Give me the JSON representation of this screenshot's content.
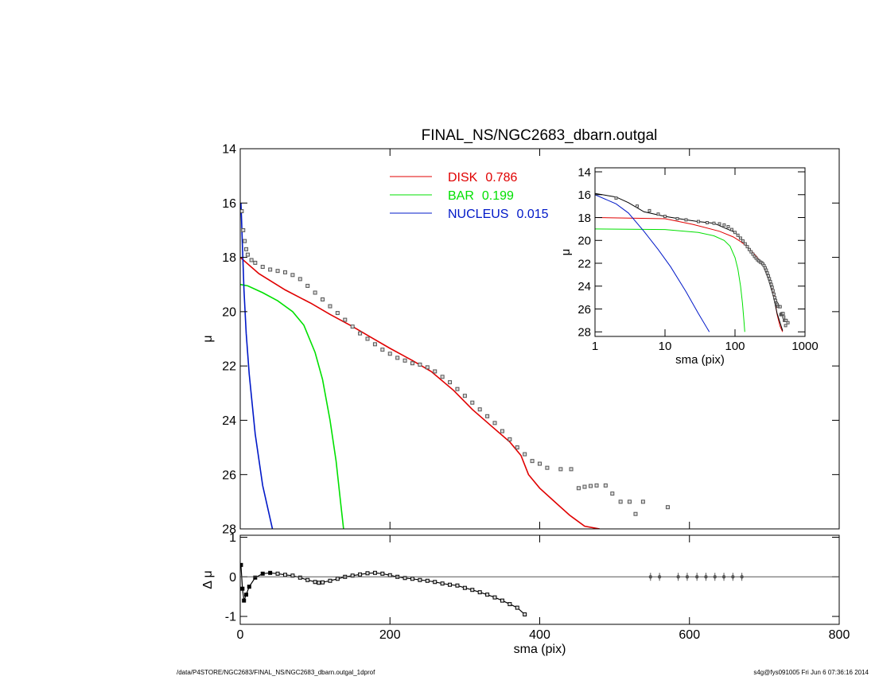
{
  "chart_data": [
    {
      "type": "line",
      "title": "FINAL_NS/NGC2683_dbarn.outgal",
      "ylabel": "μ",
      "xlim": [
        0,
        800
      ],
      "xticks": [
        0,
        200,
        400,
        600,
        800
      ],
      "ylim": [
        14,
        28
      ],
      "yticks": [
        14,
        16,
        18,
        20,
        22,
        24,
        26,
        28
      ],
      "y_reversed": true,
      "series": [
        {
          "name": "DISK",
          "fraction": 0.786,
          "color": "#e00000",
          "x": [
            0,
            25,
            60,
            95,
            120,
            150,
            175,
            200,
            230,
            255,
            285,
            310,
            335,
            360,
            375,
            385,
            400,
            420,
            440,
            445,
            460,
            480
          ],
          "values": [
            18.0,
            18.6,
            19.2,
            19.7,
            20.1,
            20.55,
            20.95,
            21.35,
            21.8,
            22.2,
            22.9,
            23.6,
            24.2,
            24.8,
            25.3,
            26.0,
            26.5,
            27.0,
            27.5,
            27.6,
            27.9,
            28.0
          ]
        },
        {
          "name": "BAR",
          "fraction": 0.199,
          "color": "#00e000",
          "x": [
            0,
            10,
            30,
            50,
            70,
            85,
            100,
            110,
            120,
            128,
            134,
            138
          ],
          "values": [
            19.0,
            19.05,
            19.3,
            19.6,
            20.0,
            20.5,
            21.5,
            22.5,
            24.0,
            25.5,
            27.0,
            28.0
          ]
        },
        {
          "name": "NUCLEUS",
          "fraction": 0.015,
          "color": "#0018c8",
          "x": [
            1,
            2,
            3,
            5,
            8,
            12,
            20,
            30,
            43
          ],
          "values": [
            16.0,
            16.8,
            17.6,
            19.2,
            20.8,
            22.3,
            24.5,
            26.4,
            28.0
          ]
        }
      ],
      "points": {
        "color": "#555555",
        "x": [
          2,
          4,
          6,
          8,
          10,
          15,
          20,
          30,
          40,
          50,
          60,
          70,
          80,
          90,
          100,
          110,
          120,
          130,
          140,
          150,
          160,
          170,
          180,
          190,
          200,
          210,
          220,
          230,
          240,
          250,
          260,
          270,
          280,
          290,
          300,
          310,
          320,
          330,
          340,
          350,
          360,
          370,
          380,
          390,
          400,
          410,
          428,
          442,
          452,
          460,
          468,
          476,
          488,
          497,
          508,
          520,
          528,
          538,
          571
        ],
        "values": [
          16.3,
          17.0,
          17.4,
          17.7,
          17.9,
          18.1,
          18.2,
          18.35,
          18.45,
          18.5,
          18.55,
          18.65,
          18.8,
          19.05,
          19.3,
          19.55,
          19.8,
          20.05,
          20.3,
          20.55,
          20.8,
          21.0,
          21.2,
          21.4,
          21.55,
          21.7,
          21.8,
          21.9,
          21.95,
          22.05,
          22.2,
          22.4,
          22.6,
          22.85,
          23.1,
          23.35,
          23.6,
          23.85,
          24.1,
          24.4,
          24.7,
          25.0,
          25.25,
          25.5,
          25.6,
          25.75,
          25.8,
          25.8,
          26.5,
          26.45,
          26.42,
          26.4,
          26.4,
          26.7,
          27.0,
          27.0,
          27.45,
          27.0,
          27.2
        ]
      }
    },
    {
      "type": "residual",
      "xlabel": "sma (pix)",
      "ylabel": "Δ μ",
      "xlim": [
        0,
        800
      ],
      "xticks": [
        0,
        200,
        400,
        600,
        800
      ],
      "ylim": [
        -1.2,
        1.05
      ],
      "yticks": [
        1,
        0,
        -1
      ],
      "points": {
        "color": "#000000",
        "x": [
          1,
          3,
          5,
          8,
          12,
          20,
          30,
          40,
          50,
          60,
          70,
          80,
          90,
          100,
          105,
          110,
          120,
          130,
          140,
          150,
          160,
          170,
          180,
          190,
          200,
          210,
          220,
          230,
          240,
          250,
          260,
          270,
          280,
          290,
          300,
          310,
          320,
          330,
          340,
          350,
          360,
          370,
          380
        ],
        "values": [
          0.3,
          -0.3,
          -0.6,
          -0.45,
          -0.25,
          -0.02,
          0.08,
          0.1,
          0.08,
          0.05,
          0.03,
          -0.02,
          -0.08,
          -0.13,
          -0.15,
          -0.14,
          -0.1,
          -0.05,
          0.0,
          0.03,
          0.06,
          0.09,
          0.1,
          0.08,
          0.04,
          0.0,
          -0.03,
          -0.05,
          -0.08,
          -0.1,
          -0.13,
          -0.17,
          -0.2,
          -0.22,
          -0.28,
          -0.33,
          -0.39,
          -0.45,
          -0.52,
          -0.6,
          -0.69,
          -0.78,
          -0.95
        ]
      },
      "error_points": {
        "color": "#555555",
        "x": [
          548,
          560,
          585,
          597,
          610,
          622,
          634,
          646,
          658,
          670
        ],
        "values": [
          0,
          0,
          0,
          0,
          0,
          0,
          0,
          0,
          0,
          0
        ],
        "errors": [
          0.1,
          0.1,
          0.1,
          0.1,
          0.1,
          0.1,
          0.1,
          0.1,
          0.1,
          0.1
        ]
      }
    },
    {
      "type": "line",
      "xlabel": "sma (pix)",
      "ylabel": "μ",
      "log_x": true,
      "xlim": [
        1,
        1000
      ],
      "xticks": [
        1,
        10,
        100,
        1000
      ],
      "ylim": [
        13.65,
        28.4
      ],
      "yticks": [
        14,
        16,
        18,
        20,
        22,
        24,
        26,
        28
      ],
      "y_reversed": true,
      "series": [
        {
          "color": "#e00000",
          "x": [
            1,
            10,
            25,
            60,
            95,
            120,
            150,
            200,
            255,
            310,
            360,
            400,
            440,
            480
          ],
          "values": [
            18.0,
            18.1,
            18.6,
            19.2,
            19.7,
            20.1,
            20.55,
            21.35,
            22.2,
            23.6,
            24.8,
            26.5,
            27.5,
            28.0
          ]
        },
        {
          "color": "#00e000",
          "x": [
            1,
            10,
            30,
            50,
            70,
            85,
            100,
            110,
            120,
            128,
            134,
            138
          ],
          "values": [
            19.0,
            19.05,
            19.3,
            19.6,
            20.0,
            20.5,
            21.5,
            22.5,
            24.0,
            25.5,
            27.0,
            28.0
          ]
        },
        {
          "color": "#0018c8",
          "x": [
            1,
            2,
            3,
            5,
            8,
            12,
            20,
            30,
            43
          ],
          "values": [
            16.0,
            16.8,
            17.6,
            19.2,
            20.8,
            22.3,
            24.5,
            26.4,
            28.0
          ]
        },
        {
          "color": "#000000",
          "x": [
            1,
            2,
            3,
            5,
            10,
            20,
            30,
            50,
            100,
            150,
            200,
            250,
            300,
            350,
            400,
            480
          ],
          "values": [
            15.9,
            16.2,
            16.7,
            17.5,
            17.9,
            18.2,
            18.35,
            18.5,
            19.3,
            20.5,
            21.5,
            22.1,
            23.4,
            24.8,
            26.4,
            27.9
          ]
        }
      ],
      "points": {
        "color": "#555555",
        "x": [
          2,
          4,
          6,
          8,
          10,
          15,
          20,
          30,
          40,
          50,
          60,
          70,
          80,
          90,
          100,
          110,
          120,
          130,
          140,
          150,
          160,
          170,
          180,
          190,
          200,
          210,
          220,
          230,
          240,
          250,
          260,
          270,
          280,
          290,
          300,
          310,
          320,
          330,
          340,
          350,
          360,
          370,
          380,
          390,
          400,
          410,
          428,
          442,
          452,
          460,
          468,
          476,
          488,
          497,
          508,
          520,
          528,
          538,
          571
        ],
        "values": [
          16.3,
          17.0,
          17.4,
          17.7,
          17.9,
          18.1,
          18.2,
          18.35,
          18.45,
          18.5,
          18.55,
          18.65,
          18.8,
          19.05,
          19.3,
          19.55,
          19.8,
          20.05,
          20.3,
          20.55,
          20.8,
          21.0,
          21.2,
          21.4,
          21.55,
          21.7,
          21.8,
          21.9,
          21.95,
          22.05,
          22.2,
          22.4,
          22.6,
          22.85,
          23.1,
          23.35,
          23.6,
          23.85,
          24.1,
          24.4,
          24.7,
          25.0,
          25.25,
          25.5,
          25.6,
          25.75,
          25.8,
          25.8,
          26.5,
          26.45,
          26.42,
          26.4,
          26.4,
          26.7,
          27.0,
          27.0,
          27.45,
          27.0,
          27.2
        ]
      }
    }
  ],
  "footer": {
    "left": "/data/P4STORE/NGC2683/FINAL_NS/NGC2683_dbarn.outgal_1dprof",
    "right": "s4g@fys091005  Fri Jun  6 07:36:16 2014"
  }
}
